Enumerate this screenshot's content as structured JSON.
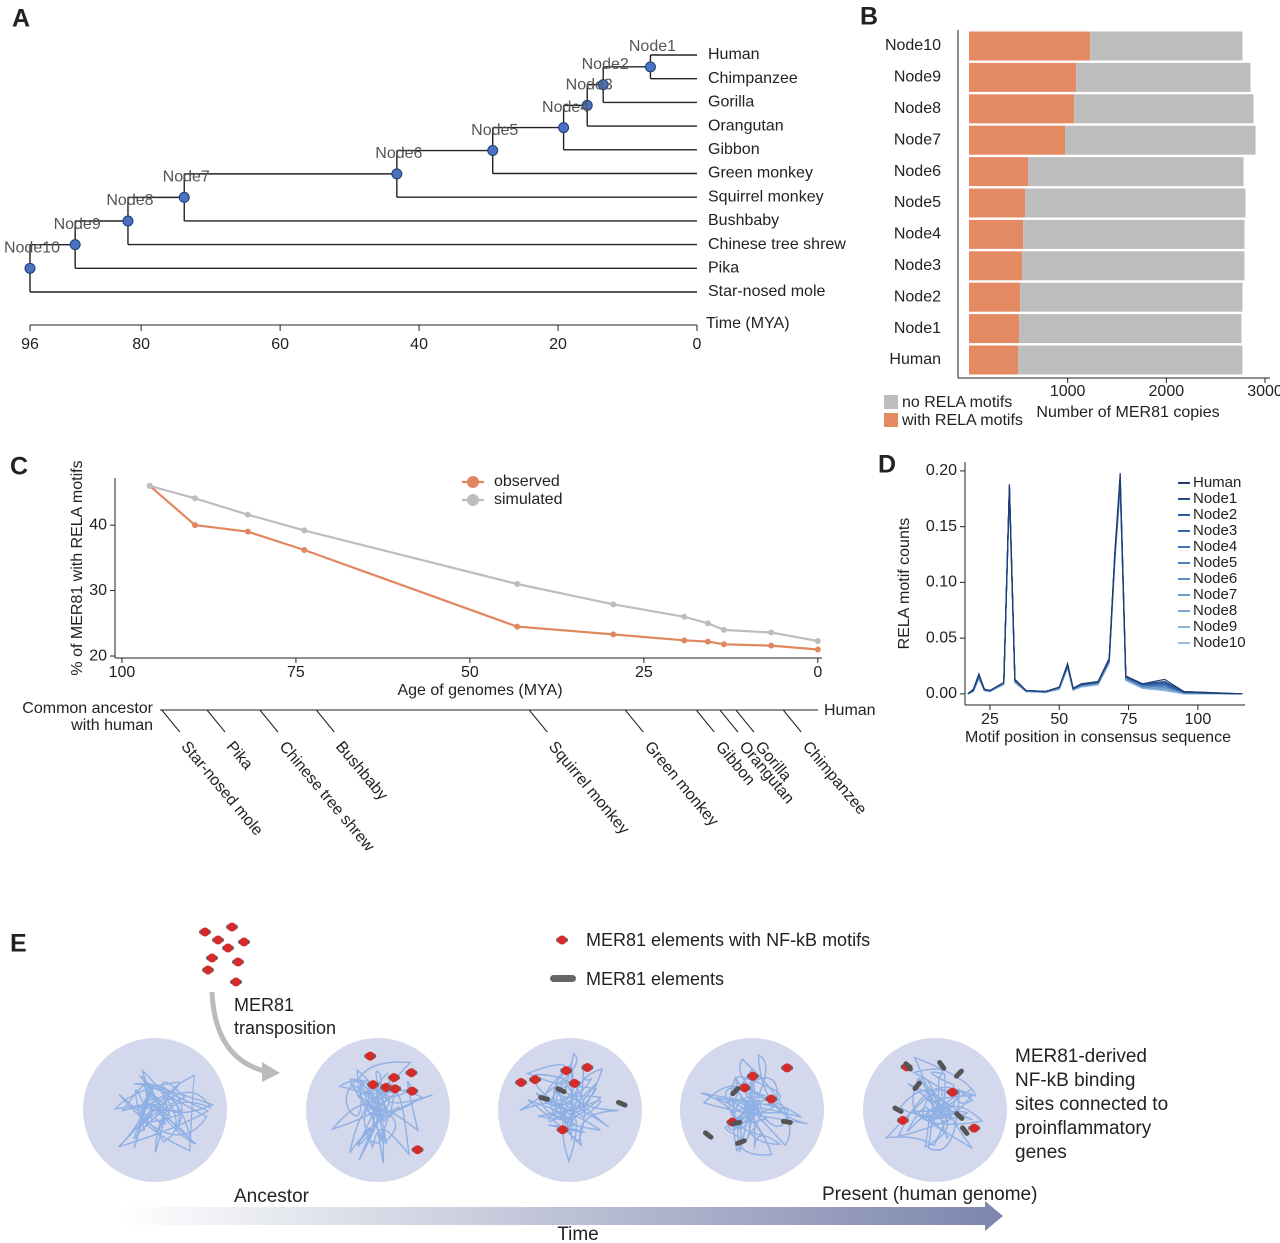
{
  "panel_labels": [
    "A",
    "B",
    "C",
    "D",
    "E"
  ],
  "chart_data": [
    {
      "type": "tree",
      "xlabel": "Time (MYA)",
      "xlim": [
        96,
        0
      ],
      "xticks": [
        96,
        80,
        60,
        40,
        20,
        0
      ],
      "leaves": [
        "Human",
        "Chimpanzee",
        "Gorilla",
        "Orangutan",
        "Gibbon",
        "Green monkey",
        "Squirrel monkey",
        "Bushbaby",
        "Chinese tree shrew",
        "Pika",
        "Star-nosed mole"
      ],
      "nodes": [
        {
          "name": "Node1",
          "age": 6.7
        },
        {
          "name": "Node2",
          "age": 13.5
        },
        {
          "name": "Node3",
          "age": 15.8
        },
        {
          "name": "Node4",
          "age": 19.2
        },
        {
          "name": "Node5",
          "age": 29.4
        },
        {
          "name": "Node6",
          "age": 43.2
        },
        {
          "name": "Node7",
          "age": 73.8
        },
        {
          "name": "Node8",
          "age": 81.9
        },
        {
          "name": "Node9",
          "age": 89.5
        },
        {
          "name": "Node10",
          "age": 96
        }
      ],
      "color": "#4a72c0"
    },
    {
      "type": "bar",
      "horizontal": true,
      "stacked": true,
      "xlabel": "Number of MER81 copies",
      "categories": [
        "Node10",
        "Node9",
        "Node8",
        "Node7",
        "Node6",
        "Node5",
        "Node4",
        "Node3",
        "Node2",
        "Node1",
        "Human"
      ],
      "series": [
        {
          "name": "with RELA motifs",
          "color": "#e38a63",
          "values": [
            1228,
            1086,
            1066,
            975,
            599,
            569,
            548,
            538,
            518,
            508,
            497
          ]
        },
        {
          "name": "no RELA motifs",
          "color": "#bdbdbd",
          "values": [
            1544,
            1767,
            1817,
            1929,
            2183,
            2233,
            2244,
            2254,
            2254,
            2253,
            2275
          ]
        }
      ],
      "xlim": [
        0,
        3000
      ],
      "xticks": [
        1000,
        2000,
        3000
      ]
    },
    {
      "type": "line",
      "xlabel": "Age of genomes (MYA)",
      "ylabel": "% of MER81 with RELA motifs",
      "xlim": [
        101,
        -0.6
      ],
      "ylim": [
        19.7,
        47.2
      ],
      "xticks": [
        100,
        75,
        50,
        25,
        0
      ],
      "yticks": [
        20,
        30,
        40
      ],
      "x": [
        96,
        89.5,
        81.9,
        73.8,
        43.2,
        29.4,
        19.2,
        15.8,
        13.5,
        6.7,
        0
      ],
      "series": [
        {
          "name": "observed",
          "color": "#e0875f",
          "values": [
            46,
            40,
            39,
            36.2,
            24.5,
            23.3,
            22.4,
            22.2,
            21.8,
            21.6,
            21
          ]
        },
        {
          "name": "simulated",
          "color": "#bdbdbd",
          "values": [
            46,
            44.1,
            41.6,
            39.2,
            31,
            27.9,
            26,
            25,
            24,
            23.6,
            22.3
          ]
        }
      ],
      "species_labels": [
        "Star-nosed mole",
        "Pika",
        "Chinese tree shrew",
        "Bushbaby",
        "Squirrel monkey",
        "Green monkey",
        "Gibbon",
        "Orangutan",
        "Gorilla",
        "Chimpanzee"
      ],
      "ancestor_label": [
        "Common ancestor",
        "with human"
      ],
      "end_label": "Human"
    },
    {
      "type": "line",
      "xlabel": "Motif position in consensus sequence",
      "ylabel": "RELA motif counts",
      "xlim": [
        16,
        117
      ],
      "ylim": [
        -0.01,
        0.208
      ],
      "xticks": [
        25,
        50,
        75,
        100
      ],
      "yticks": [
        {
          "value": 0,
          "label": "0.00"
        },
        {
          "value": 0.05,
          "label": "0.05"
        },
        {
          "value": 0.1,
          "label": "0.10"
        },
        {
          "value": 0.15,
          "label": "0.15"
        },
        {
          "value": 0.2,
          "label": "0.20"
        }
      ],
      "x": [
        17,
        19,
        21,
        23,
        25,
        30,
        32,
        34,
        38,
        45,
        50,
        53,
        55,
        58,
        64,
        68,
        70,
        72,
        74,
        80,
        88,
        95,
        116
      ],
      "series": [
        {
          "name": "Human",
          "color": "#1f3d73",
          "values": [
            0,
            0.004,
            0.018,
            0.004,
            0.003,
            0.01,
            0.188,
            0.013,
            0.003,
            0.002,
            0.006,
            0.027,
            0.005,
            0.009,
            0.011,
            0.032,
            0.125,
            0.198,
            0.016,
            0.009,
            0.013,
            0.002,
            0
          ]
        },
        {
          "name": "Node1",
          "color": "#244b8a",
          "values": [
            0,
            0.004,
            0.017,
            0.004,
            0.003,
            0.01,
            0.187,
            0.013,
            0.003,
            0.002,
            0.006,
            0.027,
            0.005,
            0.009,
            0.011,
            0.031,
            0.124,
            0.195,
            0.016,
            0.009,
            0.011,
            0.002,
            0
          ]
        },
        {
          "name": "Node2",
          "color": "#2d5a9c",
          "values": [
            0,
            0.003,
            0.017,
            0.004,
            0.003,
            0.01,
            0.186,
            0.012,
            0.003,
            0.002,
            0.006,
            0.026,
            0.005,
            0.008,
            0.01,
            0.031,
            0.123,
            0.193,
            0.015,
            0.008,
            0.01,
            0.001,
            0
          ]
        },
        {
          "name": "Node3",
          "color": "#3567a8",
          "values": [
            0,
            0.003,
            0.016,
            0.004,
            0.003,
            0.01,
            0.186,
            0.012,
            0.003,
            0.002,
            0.006,
            0.026,
            0.005,
            0.008,
            0.01,
            0.03,
            0.122,
            0.192,
            0.015,
            0.008,
            0.009,
            0.001,
            0
          ]
        },
        {
          "name": "Node4",
          "color": "#4074b2",
          "values": [
            0,
            0.003,
            0.016,
            0.004,
            0.003,
            0.01,
            0.185,
            0.012,
            0.003,
            0.002,
            0.006,
            0.026,
            0.005,
            0.008,
            0.01,
            0.03,
            0.121,
            0.191,
            0.015,
            0.008,
            0.008,
            0.001,
            0
          ]
        },
        {
          "name": "Node5",
          "color": "#4d81bb",
          "values": [
            0,
            0.003,
            0.016,
            0.003,
            0.003,
            0.01,
            0.185,
            0.012,
            0.003,
            0.002,
            0.005,
            0.025,
            0.004,
            0.008,
            0.01,
            0.03,
            0.12,
            0.19,
            0.014,
            0.007,
            0.007,
            0.001,
            0
          ]
        },
        {
          "name": "Node6",
          "color": "#5b8ec4",
          "values": [
            0,
            0.003,
            0.015,
            0.003,
            0.003,
            0.009,
            0.184,
            0.011,
            0.003,
            0.002,
            0.005,
            0.025,
            0.004,
            0.008,
            0.01,
            0.029,
            0.12,
            0.189,
            0.014,
            0.007,
            0.006,
            0.001,
            0
          ]
        },
        {
          "name": "Node7",
          "color": "#6a9bcc",
          "values": [
            0,
            0.003,
            0.015,
            0.003,
            0.002,
            0.009,
            0.183,
            0.011,
            0.003,
            0.002,
            0.005,
            0.024,
            0.004,
            0.007,
            0.009,
            0.029,
            0.119,
            0.188,
            0.013,
            0.006,
            0.005,
            0.001,
            0
          ]
        },
        {
          "name": "Node8",
          "color": "#7ba8d4",
          "values": [
            0,
            0.002,
            0.014,
            0.003,
            0.002,
            0.009,
            0.182,
            0.011,
            0.002,
            0.002,
            0.005,
            0.024,
            0.004,
            0.007,
            0.009,
            0.028,
            0.118,
            0.187,
            0.013,
            0.006,
            0.004,
            0.001,
            0
          ]
        },
        {
          "name": "Node9",
          "color": "#8db5db",
          "values": [
            0,
            0.002,
            0.014,
            0.003,
            0.002,
            0.009,
            0.181,
            0.01,
            0.002,
            0.001,
            0.004,
            0.023,
            0.004,
            0.007,
            0.009,
            0.028,
            0.117,
            0.186,
            0.012,
            0.005,
            0.003,
            0,
            0
          ]
        },
        {
          "name": "Node10",
          "color": "#a0c2e2",
          "values": [
            0,
            0.002,
            0.013,
            0.003,
            0.002,
            0.008,
            0.18,
            0.01,
            0.002,
            0.001,
            0.004,
            0.023,
            0.003,
            0.006,
            0.008,
            0.027,
            0.116,
            0.185,
            0.012,
            0.005,
            0.003,
            0,
            0
          ]
        }
      ]
    }
  ],
  "diagram": {
    "legend": [
      "MER81 elements with NF-kB motifs",
      "MER81 elements"
    ],
    "transposition": [
      "MER81",
      "transposition"
    ],
    "outcome": [
      "MER81-derived",
      "NF-kB binding",
      "sites connected to",
      "proinflammatory",
      "genes"
    ],
    "ancestor": "Ancestor",
    "present": "Present (human genome)",
    "time": "Time"
  }
}
